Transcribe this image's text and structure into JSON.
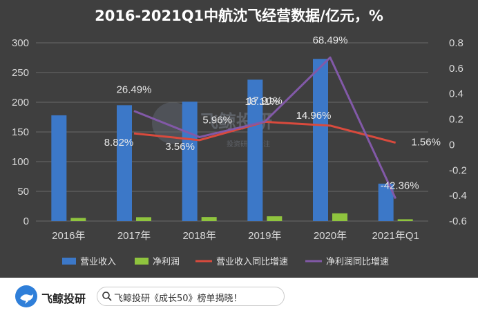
{
  "chart_data": {
    "type": "bar",
    "title": "2016-2021Q1中航沈飞经营数据/亿元，%",
    "categories": [
      "2016年",
      "2017年",
      "2018年",
      "2019年",
      "2020年",
      "2021年Q1"
    ],
    "series": [
      {
        "name": "营业收入",
        "type": "bar",
        "axis": "left",
        "color": "#3c78c8",
        "values": [
          178,
          195,
          201,
          238,
          273,
          63
        ]
      },
      {
        "name": "净利润",
        "type": "bar",
        "axis": "left",
        "color": "#8fc43e",
        "values": [
          5.2,
          6.5,
          6.8,
          8.0,
          13.0,
          3.0
        ]
      },
      {
        "name": "营业收入同比增速",
        "type": "line",
        "axis": "right",
        "color": "#d94a3d",
        "values": [
          null,
          0.0882,
          0.0356,
          0.1791,
          0.1496,
          0.0156
        ]
      },
      {
        "name": "净利润同比增速",
        "type": "line",
        "axis": "right",
        "color": "#8259a8",
        "values": [
          null,
          0.2649,
          0.0596,
          0.1811,
          0.6849,
          -0.4236
        ]
      }
    ],
    "data_labels": [
      {
        "series": "营业收入同比增速",
        "index": 1,
        "text": "8.82%"
      },
      {
        "series": "营业收入同比增速",
        "index": 2,
        "text": "3.56%"
      },
      {
        "series": "营业收入同比增速",
        "index": 3,
        "text": "17.91%"
      },
      {
        "series": "营业收入同比增速",
        "index": 4,
        "text": "14.96%"
      },
      {
        "series": "营业收入同比增速",
        "index": 5,
        "text": "1.56%"
      },
      {
        "series": "净利润同比增速",
        "index": 1,
        "text": "26.49%"
      },
      {
        "series": "净利润同比增速",
        "index": 2,
        "text": "5.96%"
      },
      {
        "series": "净利润同比增速",
        "index": 3,
        "text": "18.11%"
      },
      {
        "series": "净利润同比增速",
        "index": 4,
        "text": "68.49%"
      },
      {
        "series": "净利润同比增速",
        "index": 5,
        "text": "-42.36%"
      }
    ],
    "y_left": {
      "min": 0,
      "max": 300,
      "ticks": [
        "0",
        "50",
        "100",
        "150",
        "200",
        "250",
        "300"
      ]
    },
    "y_right": {
      "min": -0.6,
      "max": 0.8,
      "ticks": [
        "-0.6",
        "-0.4",
        "-0.2",
        "0",
        "0.2",
        "0.4",
        "0.6",
        "0.8"
      ]
    },
    "grid": true,
    "legend_position": "bottom",
    "background": "#3f3f3f"
  },
  "watermark": {
    "title": "飞鲸投研",
    "subtitle": "投资研究 关注"
  },
  "footer": {
    "brand": "飞鲸投研",
    "search_text": "飞鲸投研《成长50》榜单揭晓！",
    "brand_color": "#2f7fd9"
  }
}
